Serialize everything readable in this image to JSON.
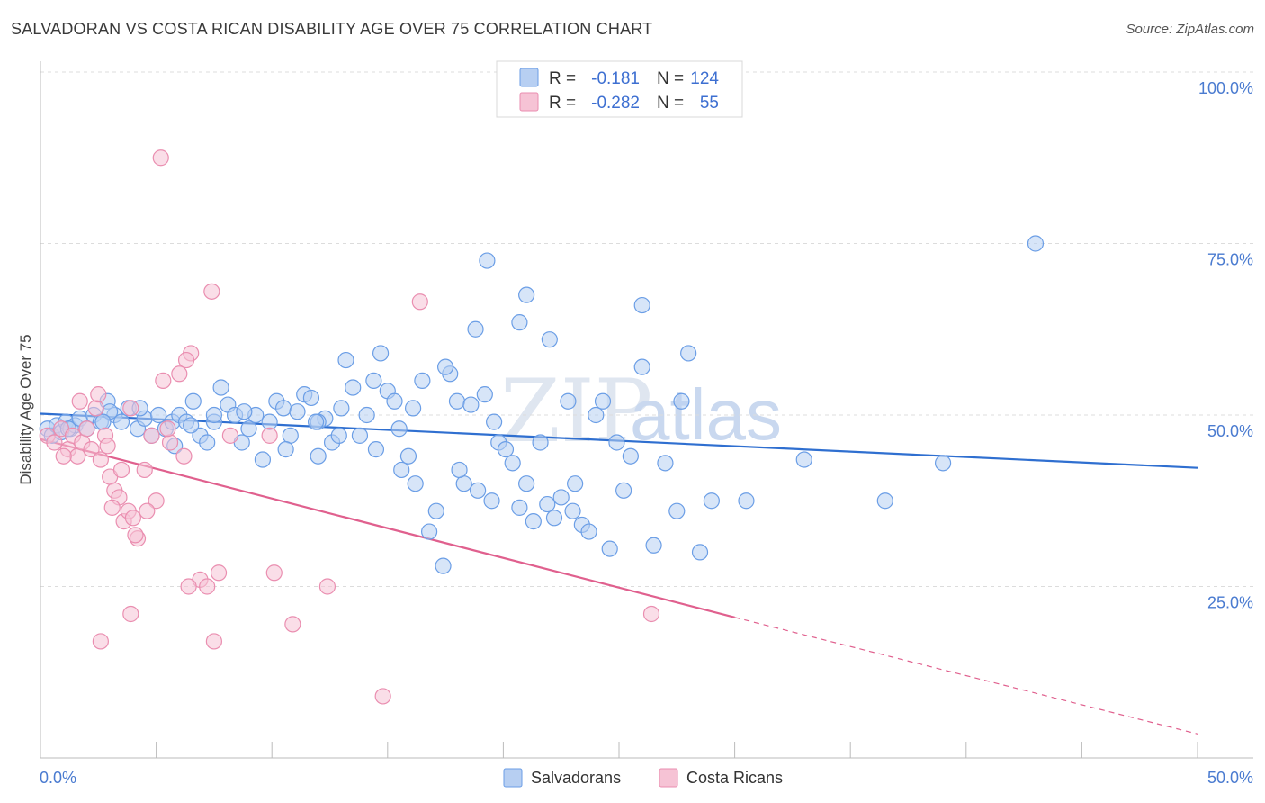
{
  "title": "SALVADORAN VS COSTA RICAN DISABILITY AGE OVER 75 CORRELATION CHART",
  "source": "Source: ZipAtlas.com",
  "watermark": {
    "part1": "ZIP",
    "part2": "atlas"
  },
  "colors": {
    "blue": "#6b9ee6",
    "blue_fill": "#b7cff2",
    "blue_line": "#2f6fd0",
    "pink": "#ea8eb0",
    "pink_fill": "#f6c3d5",
    "pink_line": "#e0608e"
  },
  "legend": {
    "rows": [
      {
        "r_label": "R =",
        "r_value": "-0.181",
        "n_label": "N =",
        "n_value": "124"
      },
      {
        "r_label": "R =",
        "r_value": "-0.282",
        "n_label": "N =",
        "n_value": "55"
      }
    ]
  },
  "bottom_legend": [
    "Salvadorans",
    "Costa Ricans"
  ],
  "chart_data": {
    "type": "scatter",
    "title": "SALVADORAN VS COSTA RICAN DISABILITY AGE OVER 75 CORRELATION CHART",
    "xlabel": "",
    "ylabel": "Disability Age Over 75",
    "xlim": [
      0,
      50
    ],
    "ylim": [
      0,
      100
    ],
    "x_tick_labels": [
      "0.0%",
      "50.0%"
    ],
    "y_tick_labels": [
      "100.0%",
      "75.0%",
      "50.0%",
      "25.0%"
    ],
    "y_ticks": [
      100,
      75,
      50,
      25
    ],
    "grid": true,
    "legend_position": "top-center",
    "series": [
      {
        "name": "Salvadorans",
        "color": "#6b9ee6",
        "trend": {
          "x": [
            0,
            50
          ],
          "y": [
            50.2,
            42.3
          ]
        },
        "points": [
          [
            0.3,
            48
          ],
          [
            0.5,
            47
          ],
          [
            0.7,
            48.5
          ],
          [
            0.9,
            47.5
          ],
          [
            1.1,
            49
          ],
          [
            1.3,
            48
          ],
          [
            1.5,
            48.5
          ],
          [
            1.7,
            49.5
          ],
          [
            2.0,
            48
          ],
          [
            2.3,
            50
          ],
          [
            2.6,
            49
          ],
          [
            2.9,
            52
          ],
          [
            3.2,
            50
          ],
          [
            3.5,
            49
          ],
          [
            3.8,
            51
          ],
          [
            4.2,
            48
          ],
          [
            4.5,
            49.5
          ],
          [
            4.8,
            47
          ],
          [
            5.1,
            50
          ],
          [
            5.4,
            48
          ],
          [
            5.7,
            49
          ],
          [
            6.0,
            50
          ],
          [
            6.3,
            49
          ],
          [
            6.6,
            52
          ],
          [
            6.9,
            47
          ],
          [
            7.2,
            46
          ],
          [
            7.5,
            49
          ],
          [
            7.8,
            54
          ],
          [
            8.1,
            51.5
          ],
          [
            8.4,
            50
          ],
          [
            8.7,
            46
          ],
          [
            9.0,
            48
          ],
          [
            9.3,
            50
          ],
          [
            9.6,
            43.5
          ],
          [
            9.9,
            49
          ],
          [
            10.2,
            52
          ],
          [
            10.5,
            51
          ],
          [
            10.8,
            47
          ],
          [
            11.1,
            50.5
          ],
          [
            11.4,
            53
          ],
          [
            11.7,
            52.5
          ],
          [
            12.0,
            44
          ],
          [
            12.3,
            49.5
          ],
          [
            12.6,
            46
          ],
          [
            12.9,
            47
          ],
          [
            13.2,
            58
          ],
          [
            13.5,
            54
          ],
          [
            13.8,
            47
          ],
          [
            14.1,
            50
          ],
          [
            14.4,
            55
          ],
          [
            14.7,
            59
          ],
          [
            15.0,
            53.5
          ],
          [
            15.3,
            52
          ],
          [
            15.6,
            42
          ],
          [
            15.9,
            44
          ],
          [
            16.2,
            40
          ],
          [
            16.5,
            55
          ],
          [
            16.8,
            33
          ],
          [
            17.1,
            36
          ],
          [
            17.4,
            28
          ],
          [
            17.7,
            56
          ],
          [
            18.0,
            52
          ],
          [
            18.3,
            40
          ],
          [
            18.6,
            51.5
          ],
          [
            18.9,
            39
          ],
          [
            19.2,
            53
          ],
          [
            19.5,
            37.5
          ],
          [
            19.8,
            46
          ],
          [
            20.1,
            45
          ],
          [
            20.4,
            43
          ],
          [
            20.7,
            36.5
          ],
          [
            21.0,
            40
          ],
          [
            21.3,
            34.5
          ],
          [
            21.6,
            46
          ],
          [
            21.9,
            37
          ],
          [
            22.2,
            35
          ],
          [
            22.5,
            38
          ],
          [
            22.8,
            52
          ],
          [
            23.1,
            40
          ],
          [
            23.4,
            34
          ],
          [
            23.7,
            33
          ],
          [
            24.0,
            50
          ],
          [
            24.3,
            52
          ],
          [
            24.6,
            30.5
          ],
          [
            24.9,
            46
          ],
          [
            25.2,
            39
          ],
          [
            25.5,
            44
          ],
          [
            26.0,
            57
          ],
          [
            26.5,
            31
          ],
          [
            27.0,
            43
          ],
          [
            27.5,
            36
          ],
          [
            28.0,
            59
          ],
          [
            28.5,
            30
          ],
          [
            29.0,
            37.5
          ],
          [
            20.7,
            63.5
          ],
          [
            18.8,
            62.5
          ],
          [
            19.3,
            72.5
          ],
          [
            21.0,
            67.5
          ],
          [
            26.0,
            66
          ],
          [
            13.0,
            51
          ],
          [
            15.5,
            48
          ],
          [
            12.0,
            49
          ],
          [
            7.5,
            50
          ],
          [
            3.0,
            50.5
          ],
          [
            4.3,
            51
          ],
          [
            5.8,
            45.5
          ],
          [
            10.6,
            45
          ],
          [
            11.9,
            49
          ],
          [
            14.5,
            45
          ],
          [
            16.1,
            51
          ],
          [
            17.5,
            57
          ],
          [
            18.1,
            42
          ],
          [
            19.6,
            49
          ],
          [
            22.0,
            61
          ],
          [
            23.0,
            36
          ],
          [
            27.7,
            52
          ],
          [
            30.5,
            37.5
          ],
          [
            33.0,
            43.5
          ],
          [
            36.5,
            37.5
          ],
          [
            39.0,
            43
          ],
          [
            43.0,
            75
          ],
          [
            1.2,
            48
          ],
          [
            2.7,
            49
          ],
          [
            6.5,
            48.5
          ],
          [
            8.8,
            50.5
          ]
        ]
      },
      {
        "name": "Costa Ricans",
        "color": "#ea8eb0",
        "trend": {
          "x": [
            0,
            30
          ],
          "y": [
            46.5,
            20.5
          ],
          "dashed_to": {
            "x": 50,
            "y": 3.5
          }
        },
        "points": [
          [
            0.3,
            47
          ],
          [
            0.6,
            46
          ],
          [
            0.9,
            48
          ],
          [
            1.2,
            45
          ],
          [
            1.4,
            47
          ],
          [
            1.6,
            44
          ],
          [
            1.8,
            46
          ],
          [
            2.0,
            48
          ],
          [
            2.2,
            45
          ],
          [
            2.4,
            51
          ],
          [
            2.6,
            43.5
          ],
          [
            2.8,
            47
          ],
          [
            3.0,
            41
          ],
          [
            3.2,
            39
          ],
          [
            3.4,
            38
          ],
          [
            3.6,
            34.5
          ],
          [
            3.8,
            36
          ],
          [
            4.0,
            35
          ],
          [
            4.2,
            32
          ],
          [
            4.5,
            42
          ],
          [
            4.8,
            47
          ],
          [
            5.0,
            37.5
          ],
          [
            5.3,
            55
          ],
          [
            5.6,
            46
          ],
          [
            6.0,
            56
          ],
          [
            6.2,
            44
          ],
          [
            6.5,
            59
          ],
          [
            6.9,
            26
          ],
          [
            7.2,
            25
          ],
          [
            7.4,
            68
          ],
          [
            7.7,
            27
          ],
          [
            8.2,
            47
          ],
          [
            9.9,
            47
          ],
          [
            10.1,
            27
          ],
          [
            10.9,
            19.5
          ],
          [
            12.4,
            25
          ],
          [
            14.8,
            9
          ],
          [
            16.4,
            66.5
          ],
          [
            5.2,
            87.5
          ],
          [
            2.5,
            53
          ],
          [
            3.9,
            51
          ],
          [
            3.5,
            42
          ],
          [
            1.0,
            44
          ],
          [
            1.7,
            52
          ],
          [
            2.9,
            45.5
          ],
          [
            3.1,
            36.5
          ],
          [
            4.1,
            32.5
          ],
          [
            2.6,
            17
          ],
          [
            3.9,
            21
          ],
          [
            6.4,
            25
          ],
          [
            7.5,
            17
          ],
          [
            26.4,
            21
          ],
          [
            4.6,
            36
          ],
          [
            5.5,
            48
          ],
          [
            6.3,
            58
          ]
        ]
      }
    ]
  }
}
